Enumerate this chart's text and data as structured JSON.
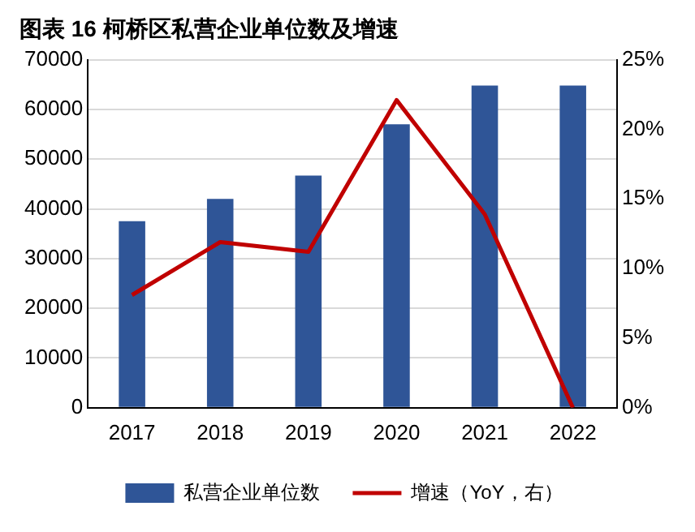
{
  "chart_data": {
    "type": "bar",
    "title": "图表 16 柯桥区私营企业单位数及增速",
    "categories": [
      "2017",
      "2018",
      "2019",
      "2020",
      "2021",
      "2022"
    ],
    "series": [
      {
        "name": "私营企业单位数",
        "color": "#2f5597",
        "values": [
          37500,
          42000,
          46700,
          57000,
          64800,
          64800
        ]
      },
      {
        "name": "增速（YoY，右）",
        "type": "line",
        "axis": "y2",
        "color": "#c00000",
        "marker": "none",
        "values": [
          8.1,
          11.9,
          11.2,
          22.1,
          13.9,
          0
        ]
      }
    ],
    "ylim": [
      0,
      70000
    ],
    "yticks": [
      0,
      10000,
      20000,
      30000,
      40000,
      50000,
      60000,
      70000
    ],
    "y2lim": [
      0,
      25
    ],
    "y2ticks": [
      {
        "value": 0,
        "label": "0%"
      },
      {
        "value": 5,
        "label": "5%"
      },
      {
        "value": 10,
        "label": "10%"
      },
      {
        "value": 15,
        "label": "15%"
      },
      {
        "value": 20,
        "label": "20%"
      },
      {
        "value": 25,
        "label": "25%"
      }
    ],
    "grid": "y",
    "legend": "bottom"
  }
}
